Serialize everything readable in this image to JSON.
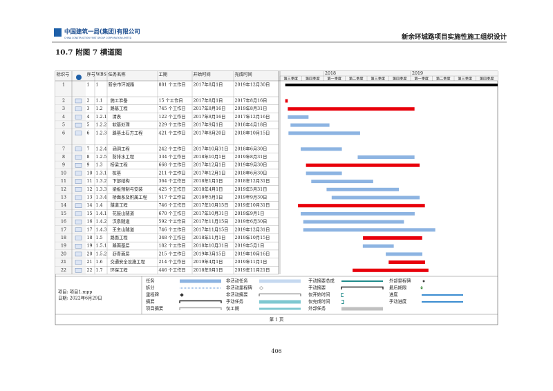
{
  "header": {
    "company": "中国建筑一局(集团)有限公司",
    "company_en": "CHINA CONSTRUCTION FIRST GROUP CORPORATION LIMITED",
    "project": "新余环城路项目实施性施工组织设计"
  },
  "section_title": "10.7  附图 7  横道图",
  "gantt": {
    "columns": [
      "标识号",
      "序号",
      "WBS",
      "任务名称",
      "工期",
      "开始时间",
      "完成时间"
    ],
    "years": [
      "2018",
      "2019"
    ],
    "quarters": [
      "第三季度",
      "第四季度",
      "第一季度",
      "第二季度",
      "第三季度",
      "第四季度",
      "第一季度",
      "第二季度",
      "第三季度",
      "第四季度"
    ],
    "tasks": [
      {
        "id": "1",
        "seq": "1",
        "wbs": "1",
        "name": "新余市环城路",
        "duration": "881 个工作日",
        "start": "2017年8月1日",
        "finish": "2019年12月30日",
        "color": "#000000"
      },
      {
        "id": "2",
        "seq": "2",
        "wbs": "1.1",
        "name": "施工准备",
        "duration": "15 个工作日",
        "start": "2017年8月1日",
        "finish": "2017年8月16日",
        "color": "#e8000b"
      },
      {
        "id": "3",
        "seq": "3",
        "wbs": "1.2",
        "name": "路基工程",
        "duration": "745 个工作日",
        "start": "2017年8月16日",
        "finish": "2019年8月31日",
        "color": "#e8000b"
      },
      {
        "id": "4",
        "seq": "4",
        "wbs": "1.2.1",
        "name": "清表",
        "duration": "122 个工作日",
        "start": "2017年8月16日",
        "finish": "2017年12月16日",
        "color": "#8db4e2"
      },
      {
        "id": "5",
        "seq": "5",
        "wbs": "1.2.2",
        "name": "软基处理",
        "duration": "229 个工作日",
        "start": "2017年9月1日",
        "finish": "2018年4月18日",
        "color": "#8db4e2"
      },
      {
        "id": "6",
        "seq": "6",
        "wbs": "1.2.3",
        "name": "路基土石方工程",
        "duration": "421 个工作日",
        "start": "2017年8月20日",
        "finish": "2018年10月15日",
        "color": "#8db4e2"
      },
      {
        "id": "7",
        "seq": "7",
        "wbs": "1.2.4",
        "name": "涵洞工程",
        "duration": "242 个工作日",
        "start": "2017年10月31日",
        "finish": "2018年6月30日",
        "color": "#8db4e2"
      },
      {
        "id": "8",
        "seq": "8",
        "wbs": "1.2.5",
        "name": "防排水工程",
        "duration": "334 个工作日",
        "start": "2018年10月1日",
        "finish": "2019年8月31日",
        "color": "#8db4e2"
      },
      {
        "id": "9",
        "seq": "9",
        "wbs": "1.3",
        "name": "桥梁工程",
        "duration": "668 个工作日",
        "start": "2017年12月1日",
        "finish": "2019年9月30日",
        "color": "#e8000b"
      },
      {
        "id": "10",
        "seq": "10",
        "wbs": "1.3.1",
        "name": "桩基",
        "duration": "211 个工作日",
        "start": "2017年12月1日",
        "finish": "2018年6月30日",
        "color": "#8db4e2"
      },
      {
        "id": "11",
        "seq": "11",
        "wbs": "1.3.2",
        "name": "下部结构",
        "duration": "364 个工作日",
        "start": "2018年1月1日",
        "finish": "2018年12月31日",
        "color": "#8db4e2"
      },
      {
        "id": "12",
        "seq": "12",
        "wbs": "1.3.3",
        "name": "梁板预制与安装",
        "duration": "425 个工作日",
        "start": "2018年4月1日",
        "finish": "2019年5月31日",
        "color": "#8db4e2"
      },
      {
        "id": "13",
        "seq": "13",
        "wbs": "1.3.4",
        "name": "桥面系及附属工程",
        "duration": "517 个工作日",
        "start": "2018年5月1日",
        "finish": "2019年9月30日",
        "color": "#8db4e2"
      },
      {
        "id": "14",
        "seq": "14",
        "wbs": "1.4",
        "name": "隧道工程",
        "duration": "746 个工作日",
        "start": "2017年10月15日",
        "finish": "2019年10月31日",
        "color": "#e8000b"
      },
      {
        "id": "15",
        "seq": "15",
        "wbs": "1.4.1",
        "name": "花鼓山隧道",
        "duration": "670 个工作日",
        "start": "2017年10月31日",
        "finish": "2019年9月1日",
        "color": "#8db4e2"
      },
      {
        "id": "16",
        "seq": "16",
        "wbs": "1.4.2",
        "name": "汉泉隧道",
        "duration": "592 个工作日",
        "start": "2017年11月15日",
        "finish": "2019年6月30日",
        "color": "#8db4e2"
      },
      {
        "id": "17",
        "seq": "17",
        "wbs": "1.4.3",
        "name": "王主山隧道",
        "duration": "746 个工作日",
        "start": "2017年11月15日",
        "finish": "2019年12月31日",
        "color": "#8db4e2"
      },
      {
        "id": "18",
        "seq": "18",
        "wbs": "1.5",
        "name": "路面工程",
        "duration": "348 个工作日",
        "start": "2018年11月1日",
        "finish": "2019年10月15日",
        "color": "#e8000b"
      },
      {
        "id": "19",
        "seq": "19",
        "wbs": "1.5.1",
        "name": "路面基层",
        "duration": "182 个工作日",
        "start": "2018年10月31日",
        "finish": "2019年5月1日",
        "color": "#8db4e2"
      },
      {
        "id": "20",
        "seq": "20",
        "wbs": "1.5.2",
        "name": "沥青面层",
        "duration": "215 个工作日",
        "start": "2019年3月15日",
        "finish": "2019年10月16日",
        "color": "#8db4e2"
      },
      {
        "id": "21",
        "seq": "21",
        "wbs": "1.6",
        "name": "交通安全设施工程",
        "duration": "214 个工作日",
        "start": "2019年4月1日",
        "finish": "2019年11月1日",
        "color": "#e8000b"
      },
      {
        "id": "22",
        "seq": "22",
        "wbs": "1.7",
        "name": "环保工程",
        "duration": "446 个工作日",
        "start": "2018年9月1日",
        "finish": "2019年11月21日",
        "color": "#e8000b"
      }
    ]
  },
  "legend": {
    "project": "项目: 项目1.mpp",
    "date": "日期: 2022年6月29日",
    "items": [
      "任务",
      "拆分",
      "里程碑",
      "摘要",
      "项目摘要",
      "非活动任务",
      "非活动里程碑",
      "非活动摘要",
      "手动任务",
      "仅工期",
      "手动摘要总成",
      "手动摘要",
      "仅开始时间",
      "仅完成时间",
      "外部任务",
      "外部里程碑",
      "最后期限",
      "进度",
      "手动进度"
    ]
  },
  "footer": "第 1 页",
  "page_number": "406"
}
